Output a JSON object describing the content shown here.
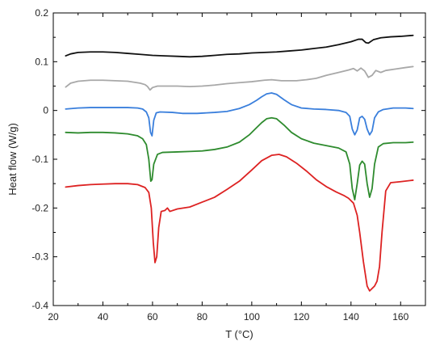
{
  "chart_data": {
    "type": "line",
    "xlabel": "T (°C)",
    "ylabel": "Heat flow (W/g)",
    "xlim": [
      20,
      170
    ],
    "ylim": [
      -0.4,
      0.2
    ],
    "xticks": [
      20,
      40,
      60,
      80,
      100,
      120,
      140,
      160
    ],
    "yticks": [
      0.2,
      0.1,
      0,
      -0.1,
      -0.2,
      -0.3,
      -0.4
    ],
    "xtick_labels": [
      "20",
      "40",
      "60",
      "80",
      "100",
      "120",
      "140",
      "160"
    ],
    "ytick_labels": [
      "0.2",
      "0.1",
      "0",
      "-0.1",
      "-0.2",
      "-0.3",
      "-0.4"
    ],
    "grid": false,
    "legend": "none",
    "series": [
      {
        "color": "#111111",
        "points": [
          [
            25,
            0.112
          ],
          [
            27,
            0.116
          ],
          [
            30,
            0.119
          ],
          [
            35,
            0.12
          ],
          [
            40,
            0.12
          ],
          [
            45,
            0.119
          ],
          [
            50,
            0.117
          ],
          [
            55,
            0.115
          ],
          [
            60,
            0.113
          ],
          [
            65,
            0.112
          ],
          [
            70,
            0.111
          ],
          [
            75,
            0.11
          ],
          [
            80,
            0.111
          ],
          [
            85,
            0.113
          ],
          [
            90,
            0.115
          ],
          [
            95,
            0.116
          ],
          [
            100,
            0.118
          ],
          [
            105,
            0.119
          ],
          [
            110,
            0.12
          ],
          [
            115,
            0.122
          ],
          [
            120,
            0.124
          ],
          [
            125,
            0.127
          ],
          [
            130,
            0.13
          ],
          [
            135,
            0.135
          ],
          [
            140,
            0.141
          ],
          [
            143,
            0.146
          ],
          [
            144.5,
            0.146
          ],
          [
            146,
            0.139
          ],
          [
            147,
            0.138
          ],
          [
            149,
            0.145
          ],
          [
            152,
            0.149
          ],
          [
            156,
            0.151
          ],
          [
            160,
            0.152
          ],
          [
            165,
            0.154
          ]
        ]
      },
      {
        "color": "#a8a8a8",
        "points": [
          [
            25,
            0.048
          ],
          [
            27,
            0.056
          ],
          [
            30,
            0.06
          ],
          [
            35,
            0.062
          ],
          [
            40,
            0.062
          ],
          [
            45,
            0.061
          ],
          [
            50,
            0.06
          ],
          [
            55,
            0.056
          ],
          [
            57,
            0.053
          ],
          [
            58,
            0.049
          ],
          [
            59,
            0.042
          ],
          [
            60,
            0.047
          ],
          [
            62,
            0.05
          ],
          [
            65,
            0.05
          ],
          [
            70,
            0.05
          ],
          [
            75,
            0.049
          ],
          [
            80,
            0.05
          ],
          [
            85,
            0.052
          ],
          [
            90,
            0.055
          ],
          [
            95,
            0.057
          ],
          [
            100,
            0.059
          ],
          [
            105,
            0.062
          ],
          [
            108,
            0.063
          ],
          [
            112,
            0.061
          ],
          [
            118,
            0.061
          ],
          [
            122,
            0.063
          ],
          [
            126,
            0.066
          ],
          [
            130,
            0.072
          ],
          [
            135,
            0.078
          ],
          [
            139,
            0.083
          ],
          [
            141,
            0.086
          ],
          [
            142.5,
            0.081
          ],
          [
            144,
            0.087
          ],
          [
            145.5,
            0.081
          ],
          [
            147,
            0.068
          ],
          [
            148.5,
            0.072
          ],
          [
            150,
            0.082
          ],
          [
            152,
            0.078
          ],
          [
            154,
            0.082
          ],
          [
            158,
            0.085
          ],
          [
            162,
            0.088
          ],
          [
            165,
            0.09
          ]
        ]
      },
      {
        "color": "#3a7fdc",
        "points": [
          [
            25,
            0.003
          ],
          [
            30,
            0.005
          ],
          [
            35,
            0.006
          ],
          [
            40,
            0.006
          ],
          [
            45,
            0.006
          ],
          [
            50,
            0.006
          ],
          [
            54,
            0.005
          ],
          [
            56,
            0.003
          ],
          [
            57.5,
            -0.003
          ],
          [
            58.5,
            -0.015
          ],
          [
            59.2,
            -0.045
          ],
          [
            59.8,
            -0.052
          ],
          [
            60.5,
            -0.02
          ],
          [
            61.5,
            -0.005
          ],
          [
            63,
            -0.003
          ],
          [
            68,
            -0.004
          ],
          [
            72,
            -0.006
          ],
          [
            78,
            -0.006
          ],
          [
            85,
            -0.004
          ],
          [
            90,
            -0.002
          ],
          [
            95,
            0.004
          ],
          [
            99,
            0.012
          ],
          [
            102,
            0.021
          ],
          [
            104,
            0.028
          ],
          [
            106,
            0.034
          ],
          [
            108,
            0.036
          ],
          [
            110,
            0.033
          ],
          [
            113,
            0.022
          ],
          [
            116,
            0.012
          ],
          [
            120,
            0.005
          ],
          [
            125,
            0.003
          ],
          [
            130,
            0.002
          ],
          [
            135,
            0.0
          ],
          [
            138,
            -0.004
          ],
          [
            139.5,
            -0.012
          ],
          [
            140.5,
            -0.038
          ],
          [
            141.5,
            -0.05
          ],
          [
            142.5,
            -0.04
          ],
          [
            143.5,
            -0.015
          ],
          [
            144.5,
            -0.012
          ],
          [
            145.5,
            -0.018
          ],
          [
            146.5,
            -0.038
          ],
          [
            147.5,
            -0.05
          ],
          [
            148.5,
            -0.042
          ],
          [
            149.5,
            -0.015
          ],
          [
            151,
            -0.003
          ],
          [
            153,
            0.002
          ],
          [
            157,
            0.005
          ],
          [
            162,
            0.005
          ],
          [
            165,
            0.004
          ]
        ]
      },
      {
        "color": "#2e8b2e",
        "points": [
          [
            25,
            -0.045
          ],
          [
            30,
            -0.046
          ],
          [
            35,
            -0.045
          ],
          [
            40,
            -0.045
          ],
          [
            45,
            -0.046
          ],
          [
            50,
            -0.048
          ],
          [
            54,
            -0.052
          ],
          [
            56,
            -0.058
          ],
          [
            57.5,
            -0.07
          ],
          [
            58.5,
            -0.1
          ],
          [
            59.3,
            -0.145
          ],
          [
            59.8,
            -0.142
          ],
          [
            60.5,
            -0.11
          ],
          [
            62,
            -0.09
          ],
          [
            64,
            -0.086
          ],
          [
            70,
            -0.085
          ],
          [
            75,
            -0.084
          ],
          [
            80,
            -0.083
          ],
          [
            85,
            -0.08
          ],
          [
            90,
            -0.075
          ],
          [
            95,
            -0.065
          ],
          [
            99,
            -0.05
          ],
          [
            102,
            -0.035
          ],
          [
            104,
            -0.025
          ],
          [
            106,
            -0.017
          ],
          [
            108,
            -0.015
          ],
          [
            110,
            -0.017
          ],
          [
            113,
            -0.03
          ],
          [
            116,
            -0.045
          ],
          [
            120,
            -0.058
          ],
          [
            125,
            -0.067
          ],
          [
            130,
            -0.072
          ],
          [
            135,
            -0.077
          ],
          [
            138,
            -0.085
          ],
          [
            139.5,
            -0.11
          ],
          [
            140.5,
            -0.16
          ],
          [
            141.5,
            -0.183
          ],
          [
            142.5,
            -0.15
          ],
          [
            143.5,
            -0.112
          ],
          [
            144.5,
            -0.104
          ],
          [
            145.5,
            -0.11
          ],
          [
            146.5,
            -0.15
          ],
          [
            147.5,
            -0.178
          ],
          [
            148.5,
            -0.16
          ],
          [
            149.5,
            -0.11
          ],
          [
            151,
            -0.075
          ],
          [
            153,
            -0.068
          ],
          [
            157,
            -0.066
          ],
          [
            162,
            -0.066
          ],
          [
            165,
            -0.065
          ]
        ]
      },
      {
        "color": "#dd2222",
        "points": [
          [
            25,
            -0.157
          ],
          [
            30,
            -0.154
          ],
          [
            35,
            -0.152
          ],
          [
            40,
            -0.151
          ],
          [
            45,
            -0.15
          ],
          [
            50,
            -0.15
          ],
          [
            54,
            -0.152
          ],
          [
            57,
            -0.158
          ],
          [
            58.5,
            -0.168
          ],
          [
            59.5,
            -0.2
          ],
          [
            60.3,
            -0.27
          ],
          [
            61,
            -0.312
          ],
          [
            61.7,
            -0.3
          ],
          [
            62.5,
            -0.24
          ],
          [
            63.5,
            -0.207
          ],
          [
            65,
            -0.205
          ],
          [
            66,
            -0.2
          ],
          [
            67,
            -0.207
          ],
          [
            70,
            -0.202
          ],
          [
            75,
            -0.198
          ],
          [
            80,
            -0.188
          ],
          [
            85,
            -0.178
          ],
          [
            90,
            -0.162
          ],
          [
            95,
            -0.145
          ],
          [
            100,
            -0.122
          ],
          [
            104,
            -0.103
          ],
          [
            108,
            -0.092
          ],
          [
            111,
            -0.09
          ],
          [
            114,
            -0.095
          ],
          [
            118,
            -0.108
          ],
          [
            122,
            -0.124
          ],
          [
            126,
            -0.142
          ],
          [
            130,
            -0.156
          ],
          [
            134,
            -0.167
          ],
          [
            137,
            -0.174
          ],
          [
            139,
            -0.18
          ],
          [
            141,
            -0.19
          ],
          [
            142.5,
            -0.215
          ],
          [
            143.5,
            -0.25
          ],
          [
            145,
            -0.31
          ],
          [
            146.5,
            -0.36
          ],
          [
            147.5,
            -0.37
          ],
          [
            148.5,
            -0.365
          ],
          [
            149.5,
            -0.36
          ],
          [
            150.5,
            -0.35
          ],
          [
            151.5,
            -0.32
          ],
          [
            152.5,
            -0.25
          ],
          [
            154,
            -0.165
          ],
          [
            156,
            -0.148
          ],
          [
            160,
            -0.146
          ],
          [
            165,
            -0.143
          ]
        ]
      }
    ]
  }
}
